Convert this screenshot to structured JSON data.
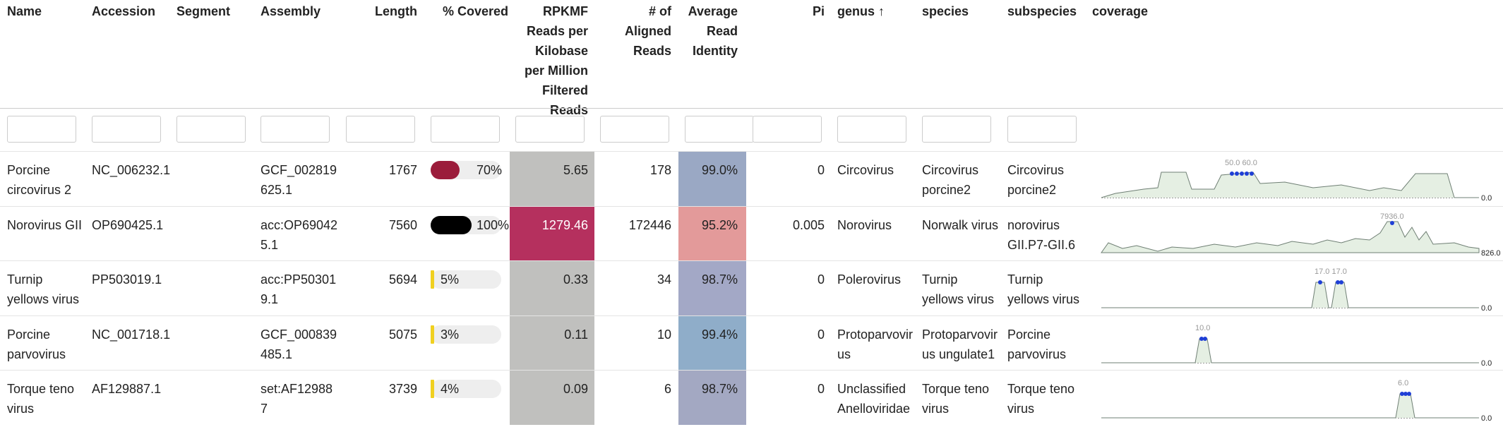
{
  "table": {
    "headers": [
      "Name",
      "Accession",
      "Segment",
      "Assembly",
      "Length",
      "% Covered",
      "RPKMF Reads per Kilobase per Million Filtered Reads",
      "# of Aligned Reads",
      "Average Read Identity",
      "Pi",
      "genus ↑",
      "species",
      "subspecies",
      "coverage"
    ],
    "rows": [
      {
        "name": "Porcine circovirus 2",
        "accession": "NC_006232.1",
        "assembly": "GCF_002819625.1",
        "length": 1767,
        "covered": 70,
        "covered_label": "70%",
        "covered_color": "#9b1c3b",
        "rpkmf": 5.65,
        "rpkmf_color": "#c0c0be",
        "aligned": 178,
        "identity": "99.0%",
        "identity_color": "#9aa8c4",
        "pi": 0,
        "genus": "Circovirus",
        "species": "Circovirus porcine2",
        "subspecies": "Circovirus porcine2",
        "coverage_peak": "50.0 60.0",
        "coverage_end": "0.0"
      },
      {
        "name": "Norovirus GII",
        "accession": "OP690425.1",
        "assembly": "acc:OP690425.1",
        "length": 7560,
        "covered": 100,
        "covered_label": "100%",
        "covered_color": "#000000",
        "rpkmf": 1279.46,
        "rpkmf_color": "#b5305e",
        "aligned": 172446,
        "identity": "95.2%",
        "identity_color": "#e39a9a",
        "pi": 0.005,
        "genus": "Norovirus",
        "species": "Norwalk virus",
        "subspecies": "norovirus GII.P7-GII.6",
        "coverage_peak": "7936.0",
        "coverage_end": "826.0"
      },
      {
        "name": "Turnip yellows virus",
        "accession": "PP503019.1",
        "assembly": "acc:PP503019.1",
        "length": 5694,
        "covered": 5,
        "covered_label": "5%",
        "covered_color": "#f0d020",
        "rpkmf": 0.33,
        "rpkmf_color": "#c0c0be",
        "aligned": 34,
        "identity": "98.7%",
        "identity_color": "#a3a8c6",
        "pi": 0,
        "genus": "Polerovirus",
        "species": "Turnip yellows virus",
        "subspecies": "Turnip yellows virus",
        "coverage_peak": "17.0 17.0",
        "coverage_end": "0.0"
      },
      {
        "name": "Porcine parvovirus",
        "accession": "NC_001718.1",
        "assembly": "GCF_000839485.1",
        "length": 5075,
        "covered": 3,
        "covered_label": "3%",
        "covered_color": "#f0d020",
        "rpkmf": 0.11,
        "rpkmf_color": "#c0c0be",
        "aligned": 10,
        "identity": "99.4%",
        "identity_color": "#8fadc9",
        "pi": 0,
        "genus": "Protoparvovirus",
        "species": "Protoparvovirus ungulate1",
        "subspecies": "Porcine parvovirus",
        "coverage_peak": "10.0",
        "coverage_end": "0.0"
      },
      {
        "name": "Torque teno virus",
        "accession": "AF129887.1",
        "assembly": "set:AF129887",
        "length": 3739,
        "covered": 4,
        "covered_label": "4%",
        "covered_color": "#f0d020",
        "rpkmf": 0.09,
        "rpkmf_color": "#c0c0be",
        "aligned": 6,
        "identity": "98.7%",
        "identity_color": "#a3a8c2",
        "pi": 0,
        "genus": "Unclassified Anelloviridae",
        "species": "Torque teno virus",
        "subspecies": "Torque teno virus",
        "coverage_peak": "6.0",
        "coverage_end": "0.0"
      }
    ]
  }
}
